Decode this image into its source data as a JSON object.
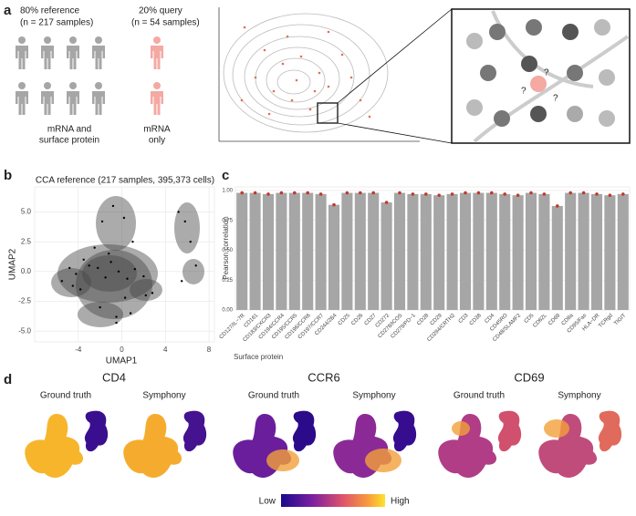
{
  "panels": {
    "a": "a",
    "b": "b",
    "c": "c",
    "d": "d"
  },
  "schematic": {
    "reference_label": "80% reference",
    "reference_n": "(n = 217 samples)",
    "query_label": "20% query",
    "query_n": "(n = 54 samples)",
    "reference_caption": [
      "mRNA and",
      "surface protein"
    ],
    "query_caption": [
      "mRNA",
      "only"
    ],
    "question_marks": [
      "?",
      "?",
      "?"
    ]
  },
  "chart_data": [
    {
      "type": "scatter",
      "title": "CCA reference (217 samples, 395,373 cells)",
      "x_label": "UMAP1",
      "y_label": "UMAP2",
      "xlim": [
        -8,
        8.5
      ],
      "ylim": [
        -5.9,
        7.1
      ],
      "xticks": [
        -4,
        0,
        4,
        8
      ],
      "yticks": [
        {
          "value": -5,
          "label": "-5.0"
        },
        {
          "value": -2.5,
          "label": "-2.5"
        },
        {
          "value": 0,
          "label": "0.0"
        },
        {
          "value": 2.5,
          "label": "2.5"
        },
        {
          "value": 5,
          "label": "5.0"
        }
      ],
      "color": "#000000",
      "grid": true,
      "x": [
        -5.5,
        -4.8,
        -4.2,
        -3.5,
        -3,
        -2.2,
        -1.5,
        -1,
        -0.3,
        0.5,
        1.2,
        2,
        2.8,
        -2.5,
        -1.8,
        -0.8,
        0.2,
        1,
        -3.8,
        -2,
        -0.5,
        0.8,
        2.2,
        5.2,
        5.8,
        6.3,
        5.5,
        6.8,
        -1.2,
        0.3,
        -4.5,
        -0.5
      ],
      "y": [
        -0.8,
        0.3,
        -0.2,
        1,
        0.5,
        0.3,
        -0.5,
        0.8,
        0,
        -0.6,
        0.2,
        -0.4,
        -1.8,
        2,
        4.2,
        5.5,
        4.5,
        2.5,
        -1.5,
        -3,
        -3.8,
        -3.5,
        -2,
        5,
        4.2,
        2.5,
        -0.8,
        0.5,
        1.5,
        -2.2,
        -1.2,
        -4.3
      ]
    },
    {
      "type": "bar",
      "x_label": "Surface protein",
      "y_label": "Pearson correlation",
      "categories": [
        "CD127/IL−7R",
        "CD161",
        "CD183/CXCR3",
        "CD194/CCR4",
        "CD195/CCR5",
        "CD196/CCR6",
        "CD197/CCR7",
        "CD244/2B4",
        "CD25",
        "CD26",
        "CD27",
        "CD272",
        "CD278/ICOS",
        "CD279/PD−1",
        "CD28",
        "CD29",
        "CD294/CRTH2",
        "CD3",
        "CD38",
        "CD4",
        "CD45RO",
        "CD48/SLAMF2",
        "CD5",
        "CD62L",
        "CD69",
        "CD8a",
        "CD95/Fas",
        "HLA−DR",
        "TCRgd",
        "TIGIT"
      ],
      "values": [
        0.98,
        0.98,
        0.97,
        0.98,
        0.98,
        0.98,
        0.97,
        0.88,
        0.98,
        0.98,
        0.98,
        0.9,
        0.98,
        0.97,
        0.97,
        0.96,
        0.97,
        0.98,
        0.98,
        0.98,
        0.97,
        0.96,
        0.98,
        0.97,
        0.87,
        0.98,
        0.98,
        0.97,
        0.96,
        0.97
      ],
      "ylim": [
        0,
        1.03
      ],
      "yticks": [
        {
          "value": 0,
          "label": "0.00"
        },
        {
          "value": 0.25,
          "label": "0.25"
        },
        {
          "value": 0.5,
          "label": "0.50"
        },
        {
          "value": 0.75,
          "label": "0.75"
        },
        {
          "value": 1,
          "label": "1.00"
        }
      ],
      "color": "#a6a6a6",
      "point_color": "#c0392b",
      "grid": true
    }
  ],
  "feature_panel": {
    "groups": [
      {
        "gene": "CD4",
        "columns": [
          "Ground truth",
          "Symphony"
        ]
      },
      {
        "gene": "CCR6",
        "columns": [
          "Ground truth",
          "Symphony"
        ]
      },
      {
        "gene": "CD69",
        "columns": [
          "Ground truth",
          "Symphony"
        ]
      }
    ],
    "legend": {
      "low": "Low",
      "high": "High"
    }
  }
}
